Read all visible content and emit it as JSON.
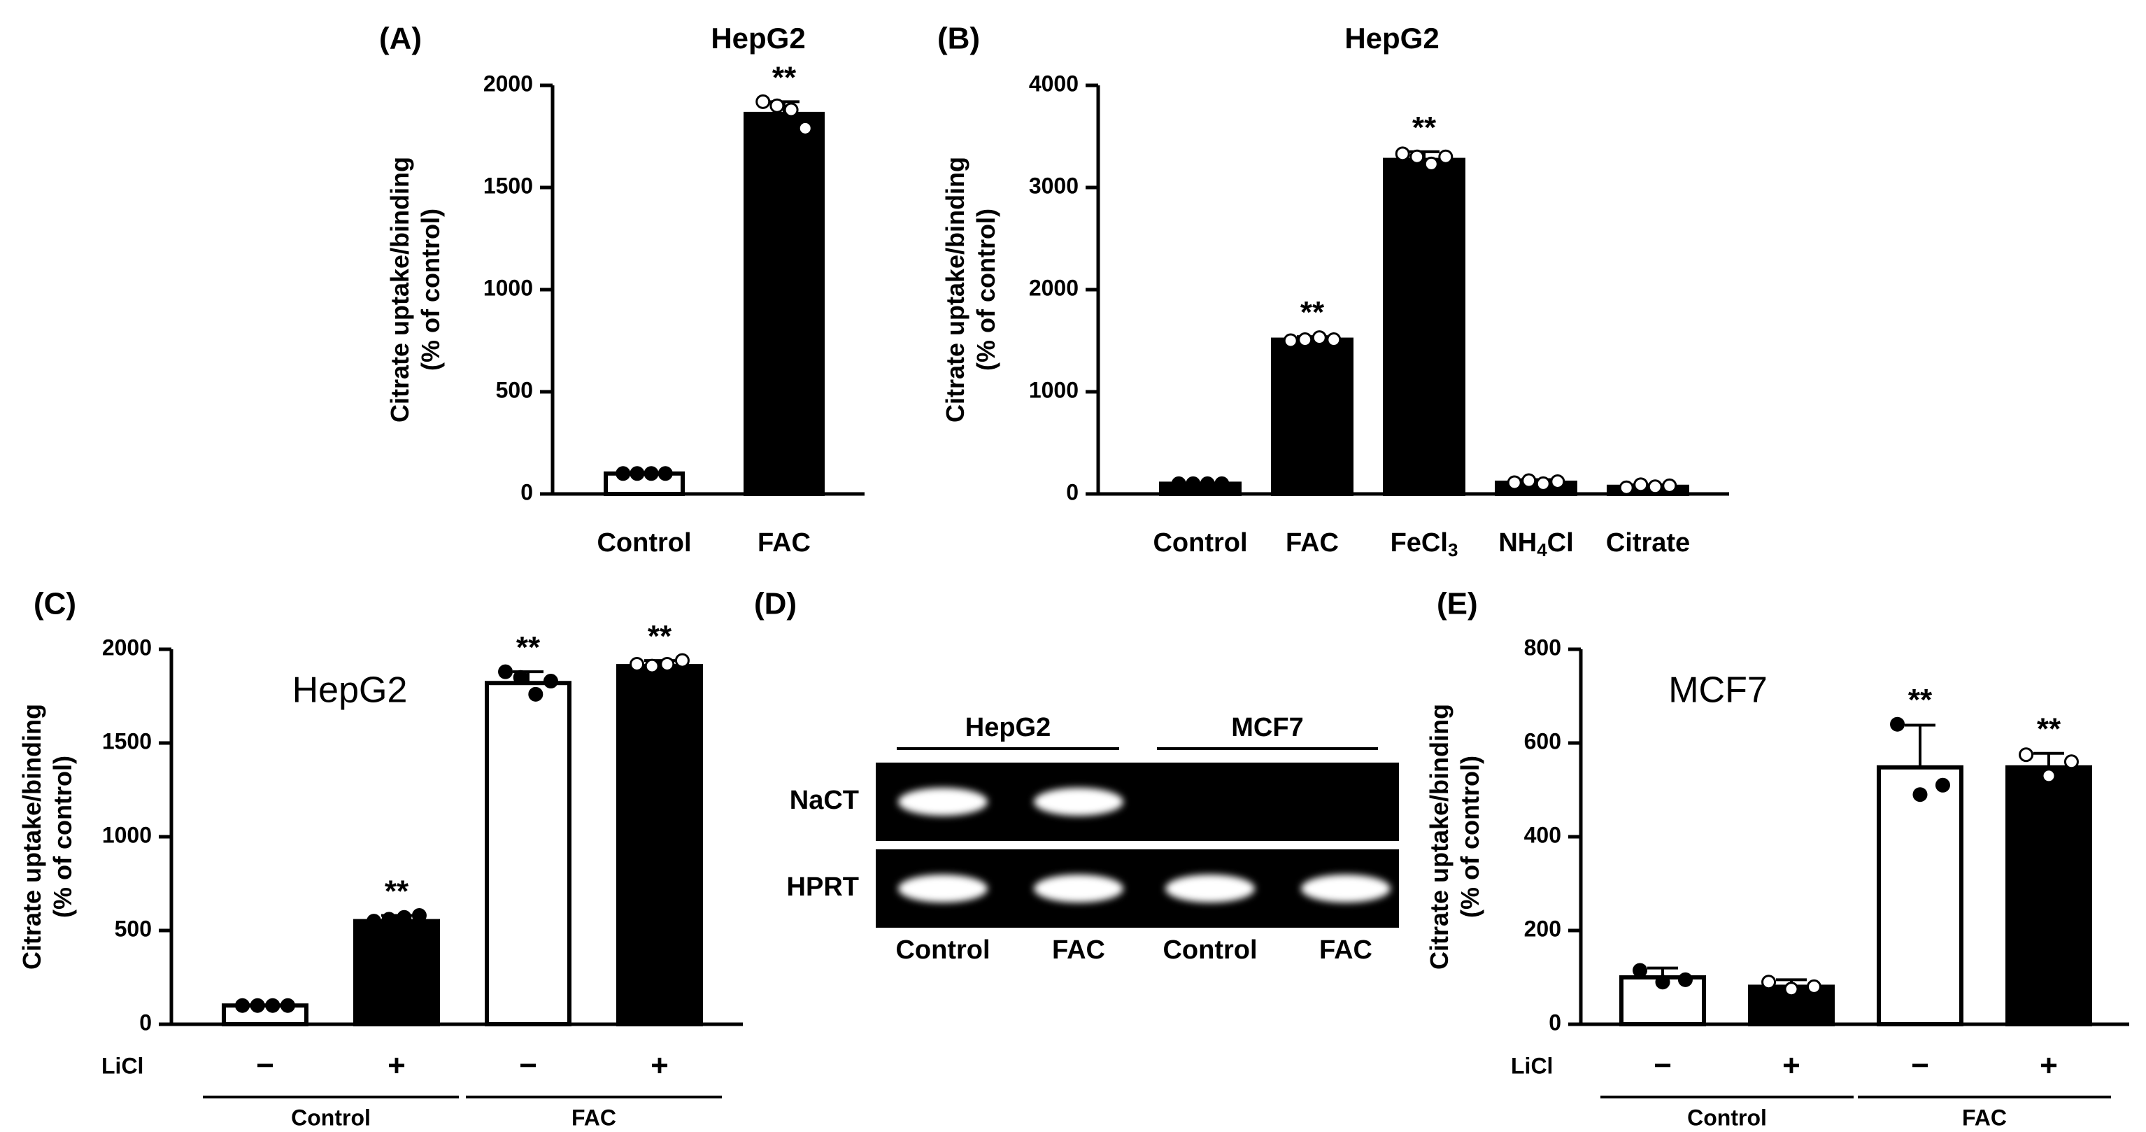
{
  "chart_data": [
    {
      "panel": "(A)",
      "type": "bar",
      "title": "HepG2",
      "ylabel_line1": "Citrate uptake/binding",
      "ylabel_line2": "(% of control)",
      "ylim": [
        0,
        2000
      ],
      "yticks": [
        "0",
        "500",
        "1000",
        "1500",
        "2000"
      ],
      "categories": [
        "Control",
        "FAC"
      ],
      "values": [
        100,
        1860
      ],
      "errors": [
        0,
        60
      ],
      "fills": [
        "#ffffff",
        "#000000"
      ],
      "points": [
        [
          100,
          100,
          100,
          100
        ],
        [
          1920,
          1900,
          1880,
          1790
        ]
      ],
      "point_fill": [
        "#000000",
        "#ffffff"
      ],
      "significance": [
        "",
        "**"
      ]
    },
    {
      "panel": "(B)",
      "type": "bar",
      "title": "HepG2",
      "ylabel_line1": "Citrate uptake/binding",
      "ylabel_line2": "(% of control)",
      "ylim": [
        0,
        4000
      ],
      "yticks": [
        "0",
        "1000",
        "2000",
        "3000",
        "4000"
      ],
      "categories": [
        {
          "main": "Control",
          "sub": "",
          "tail": ""
        },
        {
          "main": "FAC",
          "sub": "",
          "tail": ""
        },
        {
          "main": "FeCl",
          "sub": "3",
          "tail": ""
        },
        {
          "main": "NH",
          "sub": "4",
          "tail": "Cl"
        },
        {
          "main": "Citrate",
          "sub": "",
          "tail": ""
        }
      ],
      "values": [
        100,
        1510,
        3270,
        110,
        70
      ],
      "errors": [
        0,
        30,
        80,
        30,
        20
      ],
      "fills": [
        "#000000",
        "#000000",
        "#000000",
        "#000000",
        "#000000"
      ],
      "points": [
        [
          100,
          100,
          100,
          100
        ],
        [
          1500,
          1510,
          1530,
          1510
        ],
        [
          3330,
          3300,
          3230,
          3300
        ],
        [
          110,
          130,
          100,
          120
        ],
        [
          60,
          90,
          70,
          80
        ]
      ],
      "point_fill": [
        "#000000",
        "#ffffff",
        "#ffffff",
        "#ffffff",
        "#ffffff"
      ],
      "significance": [
        "",
        "**",
        "**",
        "",
        ""
      ]
    },
    {
      "panel": "(C)",
      "type": "bar",
      "title": "HepG2",
      "ylabel_line1": "Citrate uptake/binding",
      "ylabel_line2": "(% of control)",
      "ylim": [
        0,
        2000
      ],
      "yticks": [
        "0",
        "500",
        "1000",
        "1500",
        "2000"
      ],
      "factor_label": "LiCl",
      "signs": [
        "−",
        "+",
        "−",
        "+"
      ],
      "groups": [
        "Control",
        "FAC"
      ],
      "values": [
        100,
        550,
        1820,
        1910
      ],
      "errors": [
        0,
        30,
        60,
        30
      ],
      "fills": [
        "#ffffff",
        "#000000",
        "#ffffff",
        "#000000"
      ],
      "points": [
        [
          100,
          100,
          100,
          100
        ],
        [
          550,
          560,
          570,
          580
        ],
        [
          1880,
          1850,
          1760,
          1830
        ],
        [
          1920,
          1910,
          1920,
          1940
        ]
      ],
      "point_fill": [
        "#000000",
        "#000000",
        "#000000",
        "#ffffff"
      ],
      "significance": [
        "",
        "**",
        "**",
        "**"
      ]
    },
    {
      "panel": "(E)",
      "type": "bar",
      "title": "MCF7",
      "ylabel_line1": "Citrate uptake/binding",
      "ylabel_line2": "(% of control)",
      "ylim": [
        0,
        800
      ],
      "yticks": [
        "0",
        "200",
        "400",
        "600",
        "800"
      ],
      "factor_label": "LiCl",
      "signs": [
        "−",
        "+",
        "−",
        "+"
      ],
      "groups": [
        "Control",
        "FAC"
      ],
      "values": [
        100,
        80,
        548,
        548
      ],
      "errors": [
        20,
        15,
        90,
        30
      ],
      "fills": [
        "#ffffff",
        "#000000",
        "#ffffff",
        "#000000"
      ],
      "points": [
        [
          115,
          90,
          95
        ],
        [
          90,
          75,
          80
        ],
        [
          640,
          490,
          510
        ],
        [
          575,
          530,
          560
        ]
      ],
      "point_fill": [
        "#000000",
        "#ffffff",
        "#000000",
        "#ffffff"
      ],
      "significance": [
        "",
        "",
        "**",
        "**"
      ]
    }
  ],
  "gel": {
    "panel": "(D)",
    "groups": [
      "HepG2",
      "MCF7"
    ],
    "rows": [
      "NaCT",
      "HPRT"
    ],
    "lanes": [
      "Control",
      "FAC",
      "Control",
      "FAC"
    ],
    "bands": [
      [
        1,
        1,
        0,
        0
      ],
      [
        1,
        1,
        1,
        1
      ]
    ]
  }
}
